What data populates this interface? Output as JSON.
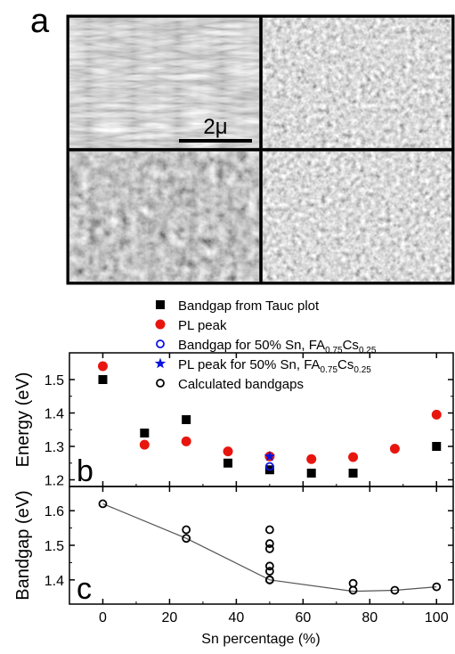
{
  "panel_a": {
    "label": "a",
    "scale_bar_label": "2μ"
  },
  "legend": {
    "entries": [
      {
        "label": "Bandgap from Tauc plot",
        "marker": "filled-square",
        "color": "#000000"
      },
      {
        "label": "PL peak",
        "marker": "filled-circle",
        "color": "#e8150f"
      },
      {
        "label": "Bandgap for 50% Sn, FA",
        "sub1": "0.75",
        "mid": "Cs",
        "sub2": "0.25",
        "marker": "open-circle",
        "color": "#0a12e0"
      },
      {
        "label": "PL peak for 50% Sn, FA",
        "sub1": "0.75",
        "mid": "Cs",
        "sub2": "0.25",
        "marker": "star",
        "color": "#0a12e0"
      },
      {
        "label": "Calculated bandgaps",
        "marker": "open-circle",
        "color": "#000000"
      }
    ]
  },
  "chart_data": [
    {
      "type": "scatter",
      "panel_label": "b",
      "ylabel": "Energy (eV)",
      "xlim": [
        -10,
        105
      ],
      "ylim": [
        1.18,
        1.58
      ],
      "yticks": [
        "1.2",
        "1.3",
        "1.4",
        "1.5"
      ],
      "series": [
        {
          "name": "Bandgap from Tauc plot",
          "color": "#000000",
          "marker": "filled-square",
          "x": [
            0,
            12.5,
            25,
            37.5,
            50,
            62.5,
            75,
            100
          ],
          "y": [
            1.5,
            1.34,
            1.38,
            1.25,
            1.23,
            1.22,
            1.22,
            1.3
          ]
        },
        {
          "name": "PL peak",
          "color": "#e8150f",
          "marker": "filled-circle",
          "x": [
            0,
            12.5,
            25,
            37.5,
            50,
            62.5,
            75,
            87.5,
            100
          ],
          "y": [
            1.54,
            1.305,
            1.315,
            1.285,
            1.27,
            1.262,
            1.268,
            1.293,
            1.395
          ]
        },
        {
          "name": "Bandgap for 50% Sn, FA0.75Cs0.25",
          "color": "#0a12e0",
          "marker": "open-circle",
          "x": [
            50
          ],
          "y": [
            1.24
          ]
        },
        {
          "name": "PL peak for 50% Sn, FA0.75Cs0.25",
          "color": "#0a12e0",
          "marker": "star",
          "x": [
            50
          ],
          "y": [
            1.27
          ]
        }
      ]
    },
    {
      "type": "line",
      "panel_label": "c",
      "xlabel": "Sn percentage (%)",
      "ylabel": "Bandgap (eV)",
      "xlim": [
        -10,
        105
      ],
      "ylim": [
        1.33,
        1.67
      ],
      "xticks": [
        "0",
        "20",
        "40",
        "60",
        "80",
        "100"
      ],
      "yticks": [
        "1.4",
        "1.5",
        "1.6"
      ],
      "series": [
        {
          "name": "Calculated bandgaps",
          "color": "#000000",
          "marker": "open-circle",
          "x": [
            0,
            25,
            25,
            50,
            50,
            50,
            50,
            50,
            50,
            50,
            75,
            75,
            87.5,
            100
          ],
          "y": [
            1.62,
            1.545,
            1.52,
            1.545,
            1.505,
            1.49,
            1.44,
            1.425,
            1.4,
            1.4,
            1.39,
            1.37,
            1.37,
            1.38
          ]
        },
        {
          "name": "trend",
          "color": "#555555",
          "marker": "line",
          "x": [
            0,
            25,
            50,
            75,
            87.5,
            100
          ],
          "y": [
            1.62,
            1.52,
            1.4,
            1.367,
            1.37,
            1.38
          ]
        }
      ]
    }
  ]
}
